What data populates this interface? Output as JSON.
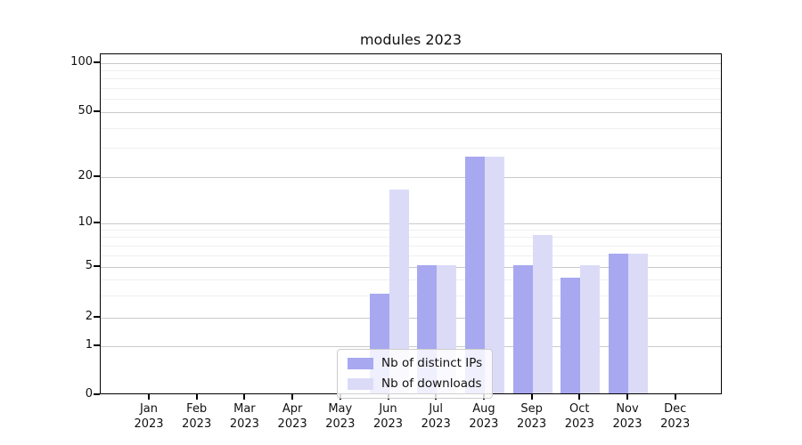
{
  "chart_data": {
    "type": "bar",
    "title": "modules 2023",
    "categories": [
      "Jan",
      "Feb",
      "Mar",
      "Apr",
      "May",
      "Jun",
      "Jul",
      "Aug",
      "Sep",
      "Oct",
      "Nov",
      "Dec"
    ],
    "year": "2023",
    "series": [
      {
        "name": "Nb of distinct IPs",
        "color": "#a8a8f0",
        "values": [
          0,
          0,
          0,
          0,
          0,
          3,
          5,
          26,
          5,
          4,
          6,
          0
        ]
      },
      {
        "name": "Nb of downloads",
        "color": "#dbdbf8",
        "values": [
          0,
          0,
          0,
          0,
          0,
          16,
          5,
          26,
          8,
          5,
          6,
          0
        ]
      }
    ],
    "yticks": [
      0,
      1,
      2,
      5,
      10,
      20,
      50,
      100
    ],
    "minor_gridlines": [
      3,
      4,
      6,
      7,
      8,
      9,
      30,
      40,
      60,
      70,
      80,
      90
    ],
    "ylim": [
      0,
      110
    ],
    "scale": "quasi-log (1-2-5 tick progression, 0 baseline)",
    "grid": "horizontal major and minor lines",
    "legend_position": "bottom-center inside plot",
    "colors": {
      "spine": "#000000",
      "grid_major": "#c9c9c9",
      "grid_minor": "#efefef",
      "background": "#ffffff"
    }
  }
}
